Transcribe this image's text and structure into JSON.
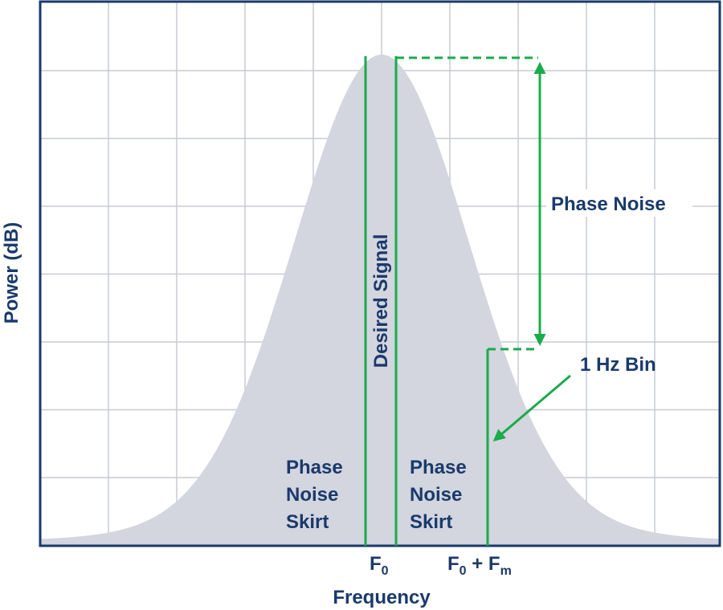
{
  "axes": {
    "y_label": "Power (dB)",
    "x_label": "Frequency"
  },
  "labels": {
    "desired_signal": "Desired Signal",
    "phase_noise": "Phase Noise",
    "bin": "1 Hz Bin",
    "skirt_left": [
      "Phase",
      "Noise",
      "Skirt"
    ],
    "skirt_right": [
      "Phase",
      "Noise",
      "Skirt"
    ]
  },
  "ticks": {
    "f0": {
      "base": "F",
      "sub": "0"
    },
    "f0_plus_fm": {
      "base": "F",
      "sub": "0",
      "plus": " + F",
      "sub2": "m"
    }
  }
}
